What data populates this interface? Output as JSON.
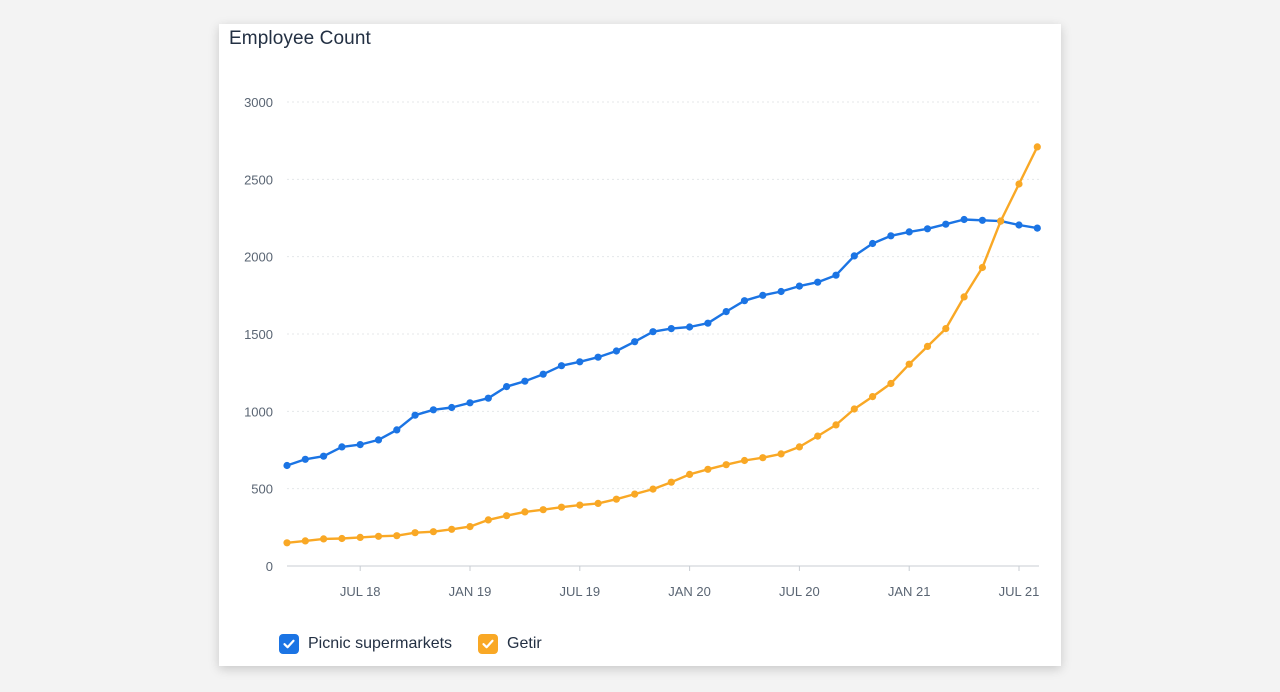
{
  "card": {
    "title": "Employee Count"
  },
  "chart_data": {
    "type": "line",
    "title": "Employee Count",
    "xlabel": "",
    "ylabel": "",
    "ylim": [
      0,
      3000
    ],
    "yticks": [
      0,
      500,
      1000,
      1500,
      2000,
      2500,
      3000
    ],
    "xticks": [
      "JUL 18",
      "JAN 19",
      "JUL 19",
      "JAN 20",
      "JUL 20",
      "JAN 21",
      "JUL 21"
    ],
    "x_start": "2018-03",
    "x_end": "2021-08",
    "grid": true,
    "legend_position": "bottom-left",
    "series": [
      {
        "name": "Picnic supermarkets",
        "color": "#1b74e4",
        "values": [
          650,
          690,
          710,
          770,
          785,
          815,
          880,
          975,
          1010,
          1025,
          1055,
          1085,
          1160,
          1195,
          1240,
          1295,
          1320,
          1350,
          1390,
          1450,
          1515,
          1535,
          1545,
          1570,
          1645,
          1715,
          1750,
          1775,
          1810,
          1835,
          1880,
          2005,
          2085,
          2135,
          2160,
          2180,
          2210,
          2240,
          2235,
          2230,
          2205,
          2185
        ]
      },
      {
        "name": "Getir",
        "color": "#f9a825",
        "values": [
          150,
          162,
          175,
          178,
          185,
          192,
          196,
          215,
          222,
          237,
          255,
          298,
          325,
          350,
          364,
          380,
          394,
          405,
          432,
          465,
          497,
          542,
          592,
          625,
          655,
          682,
          700,
          725,
          770,
          840,
          912,
          1015,
          1095,
          1180,
          1305,
          1420,
          1535,
          1740,
          1930,
          2230,
          2470,
          2710
        ]
      }
    ]
  }
}
